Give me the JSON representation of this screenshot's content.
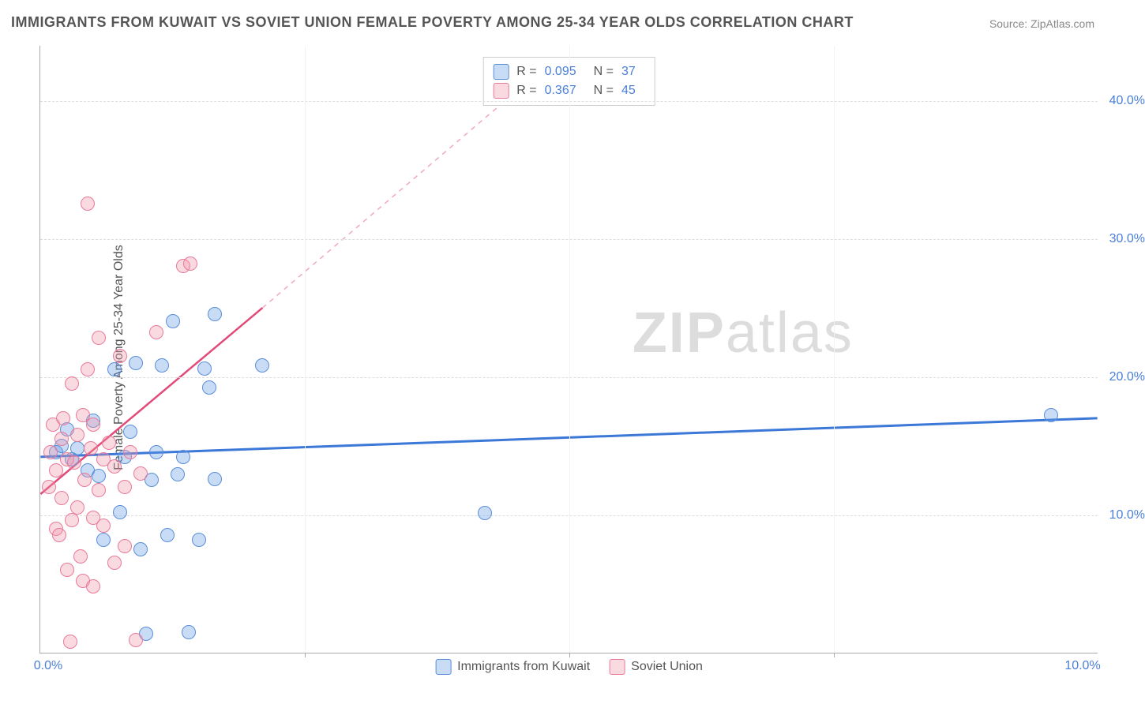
{
  "title": "IMMIGRANTS FROM KUWAIT VS SOVIET UNION FEMALE POVERTY AMONG 25-34 YEAR OLDS CORRELATION CHART",
  "source": "Source: ZipAtlas.com",
  "watermark": {
    "part1": "ZIP",
    "part2": "atlas"
  },
  "chart": {
    "type": "scatter",
    "ylabel": "Female Poverty Among 25-34 Year Olds",
    "xlim": [
      0,
      10
    ],
    "ylim": [
      0,
      44
    ],
    "xticks": [
      0,
      2.5,
      5,
      7.5,
      10
    ],
    "xtick_labels": [
      "0.0%",
      "",
      "",
      "",
      "10.0%"
    ],
    "yticks": [
      10,
      20,
      30,
      40
    ],
    "ytick_labels": [
      "10.0%",
      "20.0%",
      "30.0%",
      "40.0%"
    ],
    "background_color": "#ffffff",
    "grid_color": "#dddddd",
    "axis_color": "#aaaaaa",
    "marker_size": 18,
    "series": [
      {
        "name": "Immigrants from Kuwait",
        "color_fill": "rgba(100,155,230,0.35)",
        "color_stroke": "#5a8ed8",
        "R": 0.095,
        "N": 37,
        "trend": {
          "x1": 0,
          "y1": 14.2,
          "x2": 10,
          "y2": 17.0,
          "stroke": "#3b78d8",
          "width": 3,
          "dash": ""
        },
        "points": [
          [
            0.15,
            14.5
          ],
          [
            0.2,
            15.0
          ],
          [
            0.25,
            16.2
          ],
          [
            0.3,
            14.0
          ],
          [
            0.35,
            14.8
          ],
          [
            0.45,
            13.2
          ],
          [
            0.5,
            16.8
          ],
          [
            0.55,
            12.8
          ],
          [
            0.6,
            8.2
          ],
          [
            0.7,
            20.5
          ],
          [
            0.75,
            10.2
          ],
          [
            0.8,
            14.2
          ],
          [
            0.85,
            16.0
          ],
          [
            0.9,
            21.0
          ],
          [
            0.95,
            7.5
          ],
          [
            1.0,
            1.4
          ],
          [
            1.05,
            12.5
          ],
          [
            1.1,
            14.5
          ],
          [
            1.15,
            20.8
          ],
          [
            1.2,
            8.5
          ],
          [
            1.25,
            24.0
          ],
          [
            1.3,
            12.9
          ],
          [
            1.35,
            14.2
          ],
          [
            1.4,
            1.5
          ],
          [
            1.5,
            8.2
          ],
          [
            1.55,
            20.6
          ],
          [
            1.6,
            19.2
          ],
          [
            1.65,
            24.5
          ],
          [
            1.65,
            12.6
          ],
          [
            2.1,
            20.8
          ],
          [
            4.2,
            10.1
          ],
          [
            9.55,
            17.2
          ]
        ]
      },
      {
        "name": "Soviet Union",
        "color_fill": "rgba(240,150,170,0.35)",
        "color_stroke": "#e87a9a",
        "R": 0.367,
        "N": 45,
        "trend": {
          "x1": 0,
          "y1": 11.5,
          "x2": 2.1,
          "y2": 25.0,
          "stroke": "#e24a78",
          "width": 2.5,
          "dash": ""
        },
        "trend_ext": {
          "x1": 2.1,
          "y1": 25.0,
          "x2": 4.7,
          "y2": 42.0,
          "stroke": "#f0a8bc",
          "width": 1.5,
          "dash": "6 6"
        },
        "points": [
          [
            0.08,
            12.0
          ],
          [
            0.1,
            14.5
          ],
          [
            0.12,
            16.5
          ],
          [
            0.15,
            13.2
          ],
          [
            0.15,
            9.0
          ],
          [
            0.18,
            8.5
          ],
          [
            0.2,
            11.2
          ],
          [
            0.2,
            15.5
          ],
          [
            0.22,
            17.0
          ],
          [
            0.25,
            14.0
          ],
          [
            0.25,
            6.0
          ],
          [
            0.28,
            0.8
          ],
          [
            0.3,
            9.6
          ],
          [
            0.3,
            19.5
          ],
          [
            0.32,
            13.8
          ],
          [
            0.35,
            15.8
          ],
          [
            0.35,
            10.5
          ],
          [
            0.38,
            7.0
          ],
          [
            0.4,
            17.2
          ],
          [
            0.4,
            5.2
          ],
          [
            0.42,
            12.5
          ],
          [
            0.45,
            20.5
          ],
          [
            0.45,
            32.5
          ],
          [
            0.48,
            14.8
          ],
          [
            0.5,
            9.8
          ],
          [
            0.5,
            16.5
          ],
          [
            0.5,
            4.8
          ],
          [
            0.55,
            11.8
          ],
          [
            0.55,
            22.8
          ],
          [
            0.6,
            14.0
          ],
          [
            0.6,
            9.2
          ],
          [
            0.65,
            15.2
          ],
          [
            0.7,
            13.5
          ],
          [
            0.7,
            6.5
          ],
          [
            0.75,
            21.5
          ],
          [
            0.8,
            12.0
          ],
          [
            0.85,
            14.5
          ],
          [
            0.8,
            7.7
          ],
          [
            0.9,
            0.9
          ],
          [
            0.95,
            13.0
          ],
          [
            1.1,
            23.2
          ],
          [
            1.35,
            28.0
          ],
          [
            1.42,
            28.2
          ]
        ]
      }
    ],
    "legend_bottom": [
      {
        "label": "Immigrants from Kuwait",
        "swatch": "blue"
      },
      {
        "label": "Soviet Union",
        "swatch": "pink"
      }
    ],
    "legend_top": [
      {
        "swatch": "blue",
        "R_label": "R =",
        "R": "0.095",
        "N_label": "N =",
        "N": "37"
      },
      {
        "swatch": "pink",
        "R_label": "R =",
        "R": "0.367",
        "N_label": "N =",
        "N": "45"
      }
    ]
  }
}
